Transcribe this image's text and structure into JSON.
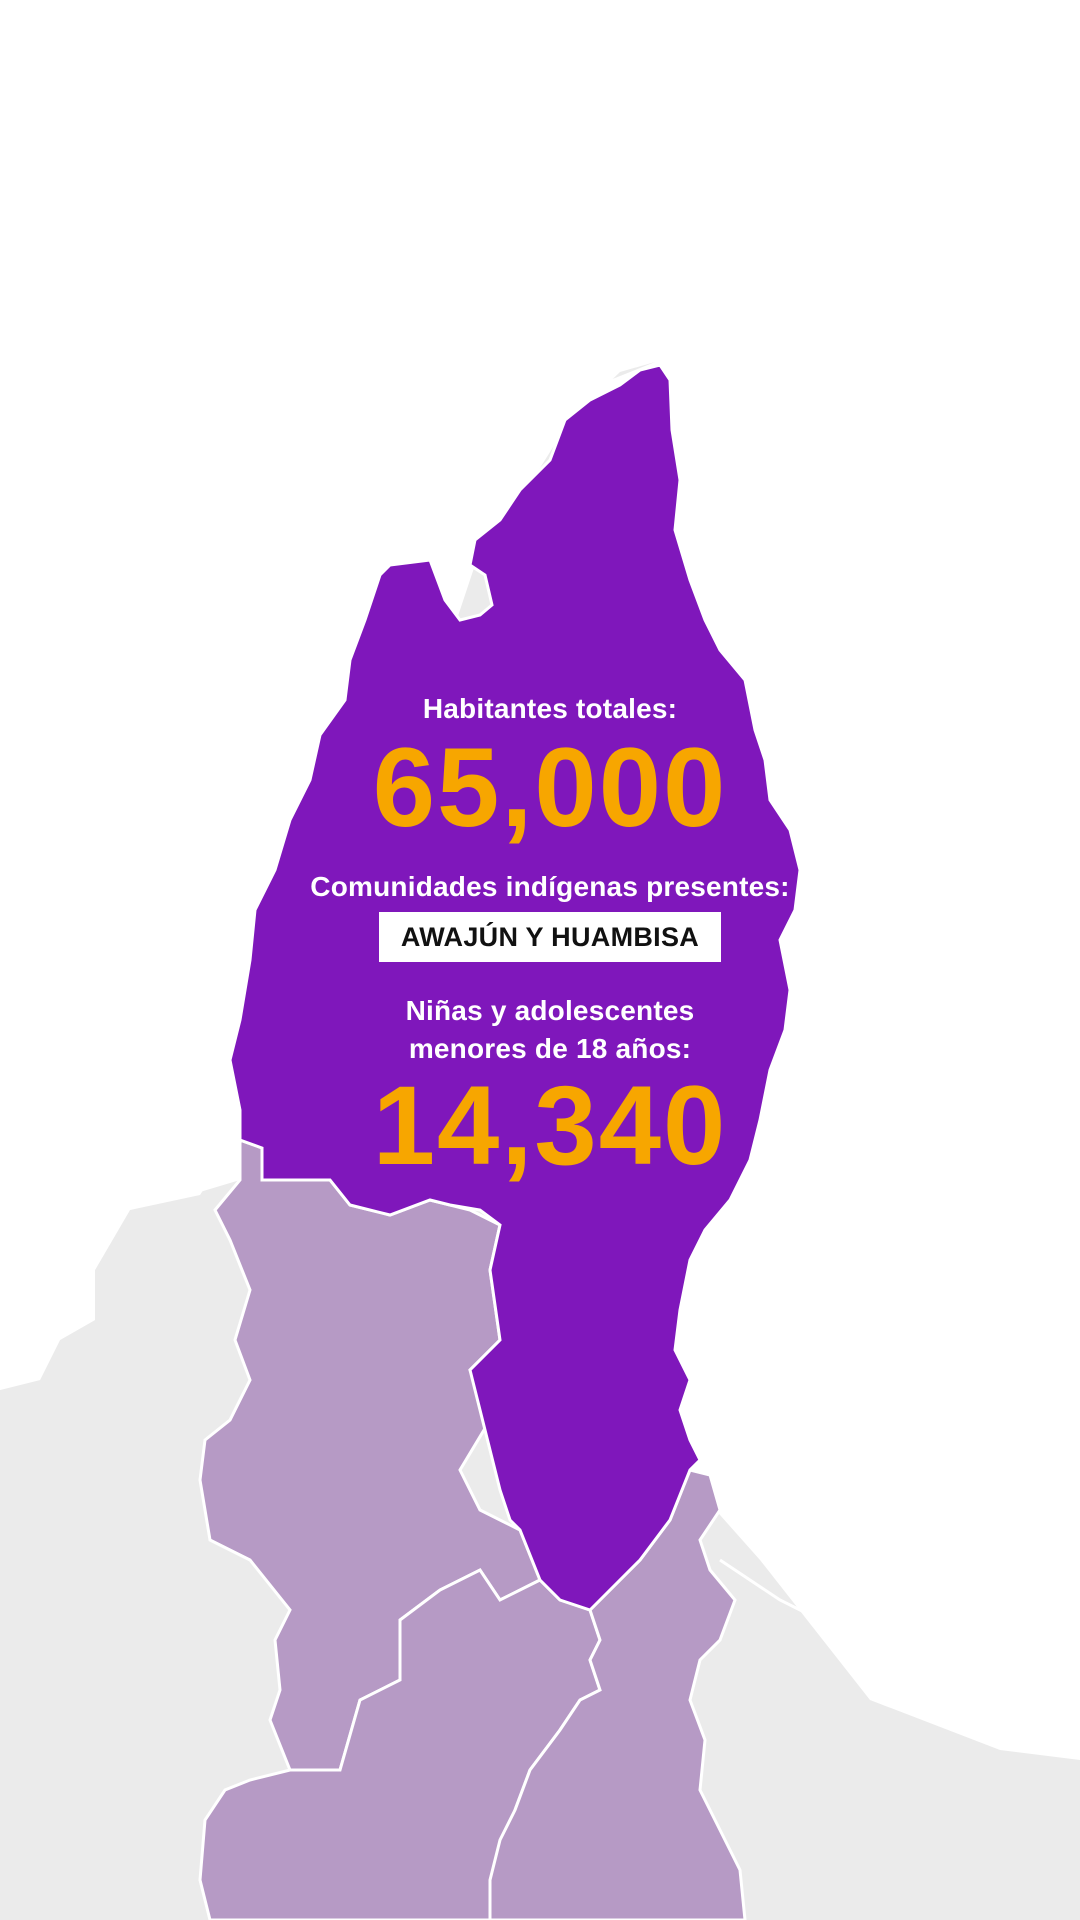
{
  "stats": {
    "habitantes_label": "Habitantes totales:",
    "habitantes_value": "65,000",
    "comunidades_label": "Comunidades indígenas presentes:",
    "comunidades_value": "AWAJÚN Y HUAMBISA",
    "ninas_label_line1": "Niñas y adolescentes",
    "ninas_label_line2": "menores de 18 años:",
    "ninas_value": "14,340"
  },
  "colors": {
    "highlight_region": "#7f17bb",
    "neighbor_region": "#b69ac5",
    "background_land": "#ebebeb",
    "ocean_or_blank": "#ffffff",
    "accent_number": "#f7a600",
    "label_text": "#ffffff"
  }
}
